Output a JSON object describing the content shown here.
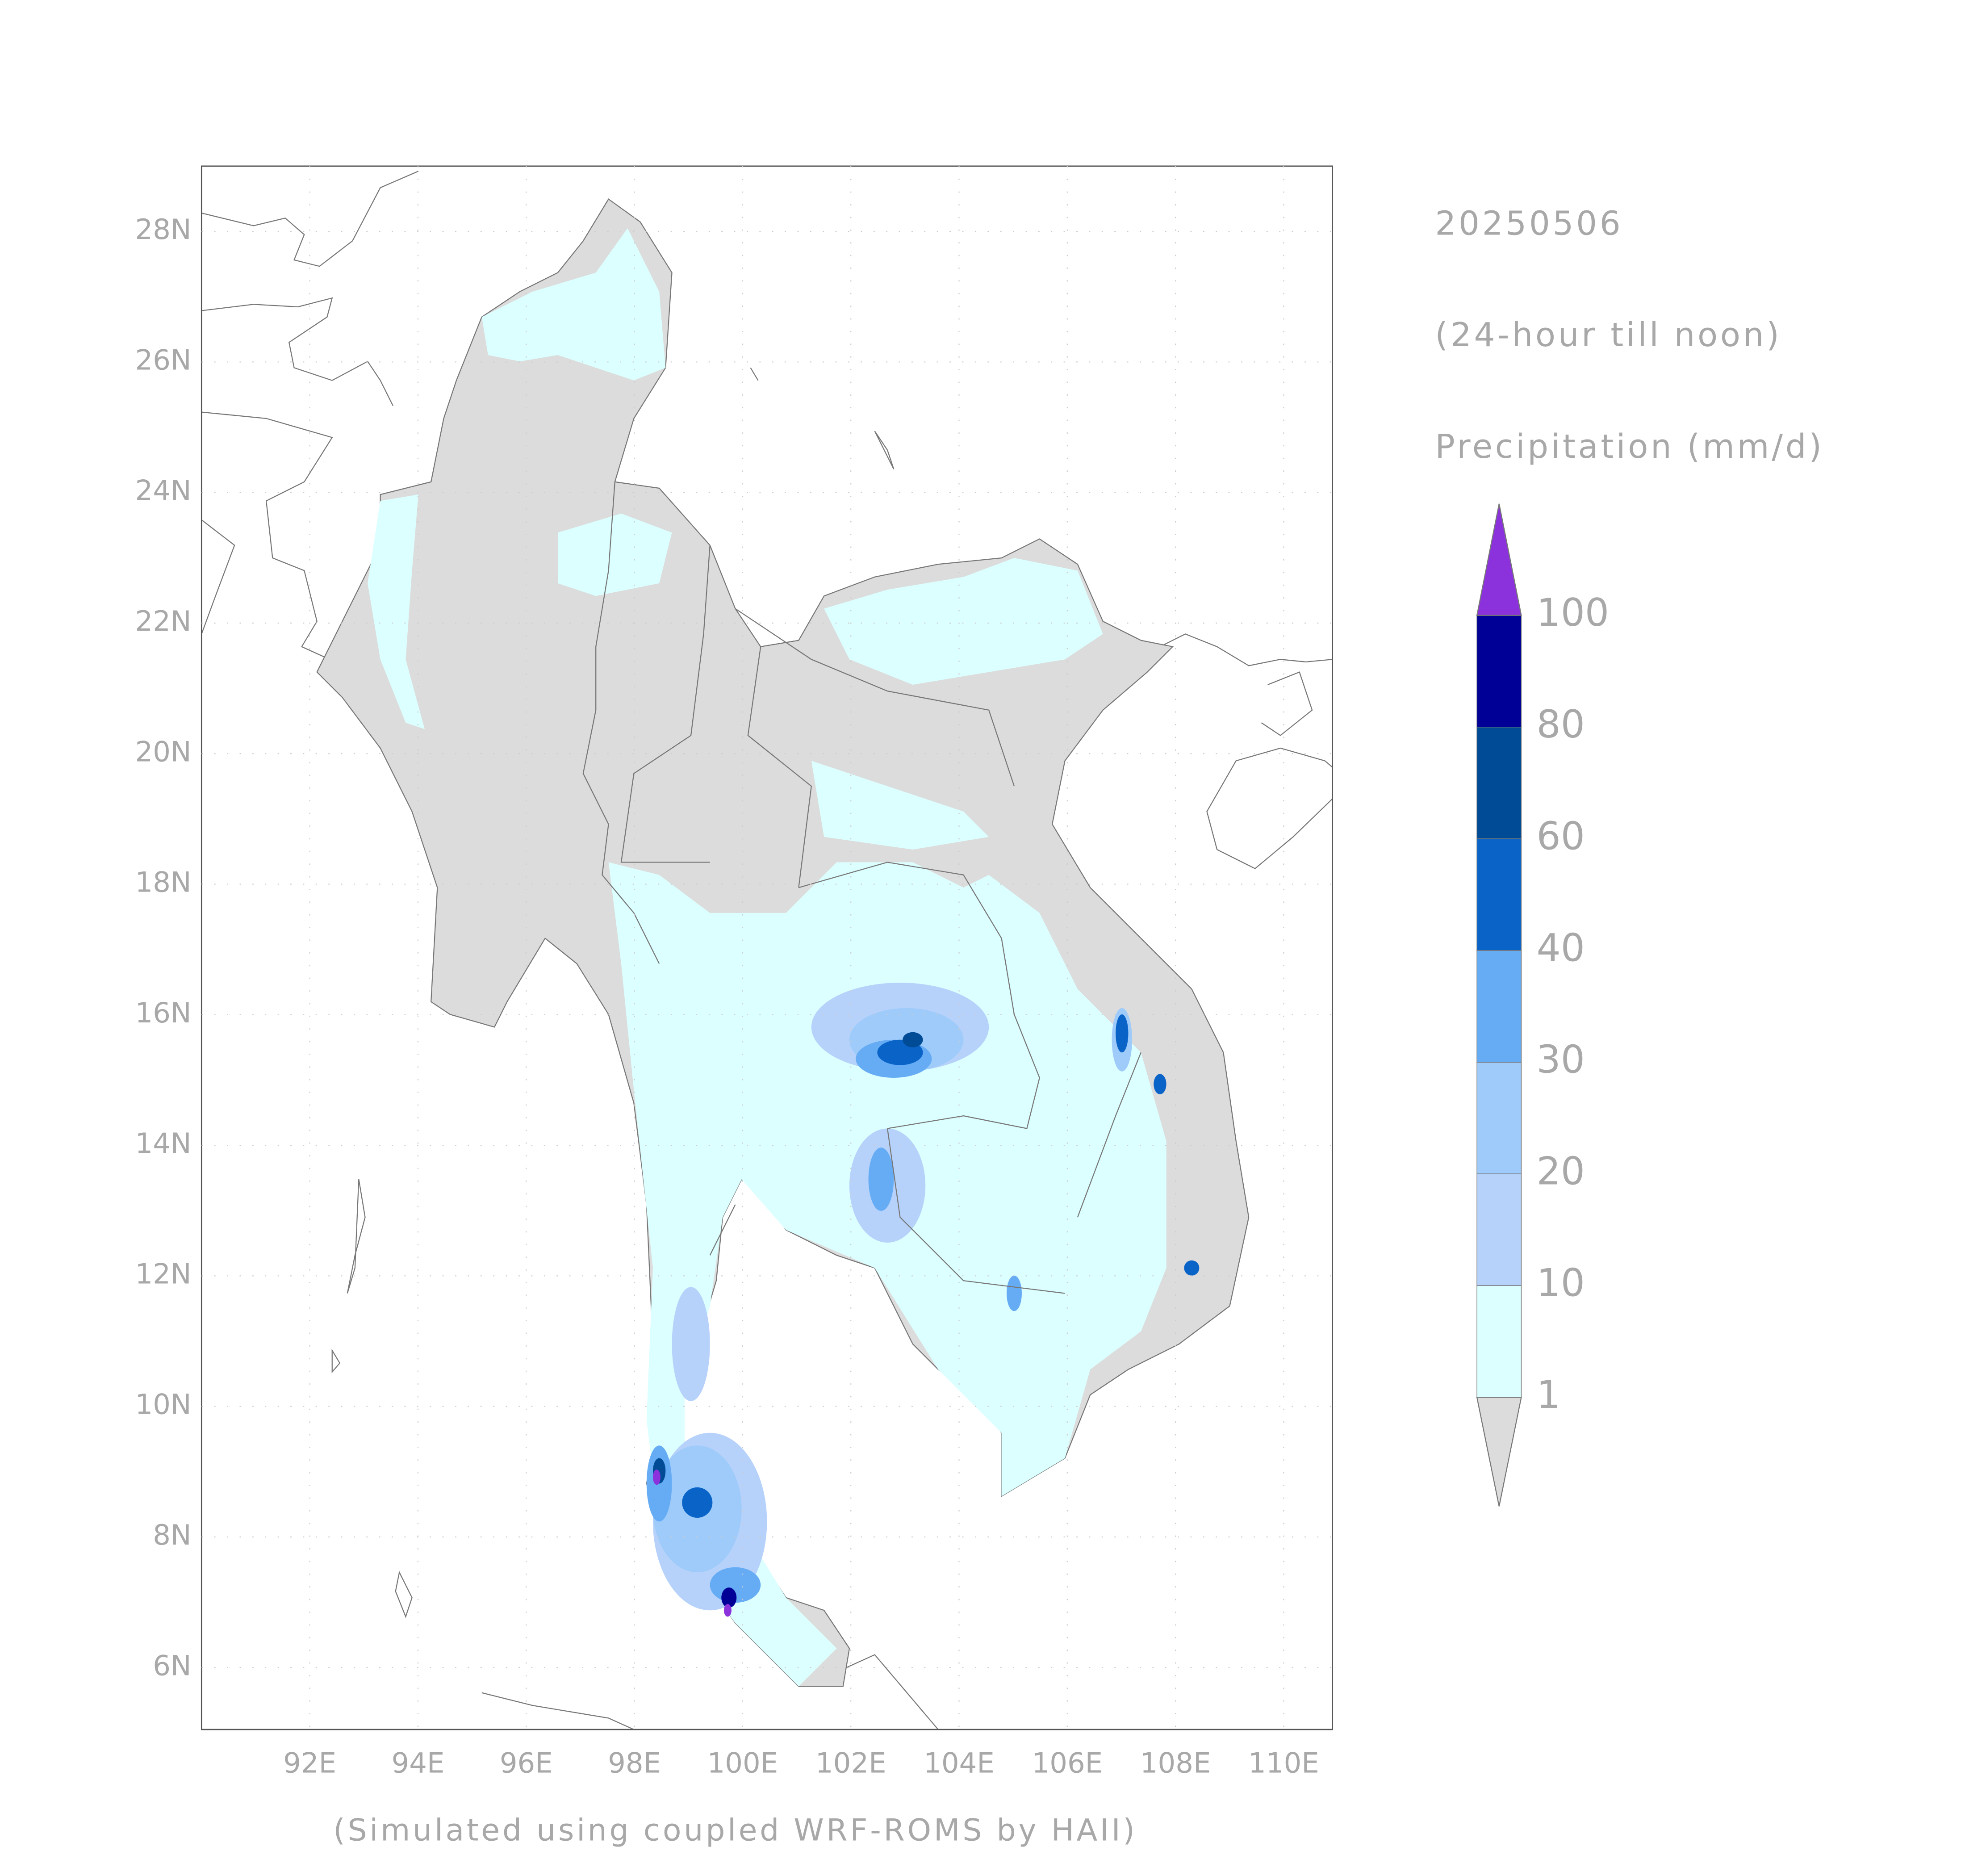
{
  "map": {
    "date": "20250506",
    "period": "(24-hour till noon)",
    "variable": "Precipitation (mm/d)",
    "credit": "(Simulated using coupled WRF-ROMS by HAII)",
    "xlim": [
      90,
      110.9
    ],
    "ylim": [
      5.05,
      29
    ],
    "xticks": [
      {
        "value": 92,
        "label": "92E"
      },
      {
        "value": 94,
        "label": "94E"
      },
      {
        "value": 96,
        "label": "96E"
      },
      {
        "value": 98,
        "label": "98E"
      },
      {
        "value": 100,
        "label": "100E"
      },
      {
        "value": 102,
        "label": "102E"
      },
      {
        "value": 104,
        "label": "104E"
      },
      {
        "value": 106,
        "label": "106E"
      },
      {
        "value": 108,
        "label": "108E"
      },
      {
        "value": 110,
        "label": "110E"
      }
    ],
    "yticks": [
      {
        "value": 6,
        "label": "6N"
      },
      {
        "value": 8,
        "label": "8N"
      },
      {
        "value": 10,
        "label": "10N"
      },
      {
        "value": 12,
        "label": "12N"
      },
      {
        "value": 14,
        "label": "14N"
      },
      {
        "value": 16,
        "label": "16N"
      },
      {
        "value": 18,
        "label": "18N"
      },
      {
        "value": 20,
        "label": "20N"
      },
      {
        "value": 22,
        "label": "22N"
      },
      {
        "value": 24,
        "label": "24N"
      },
      {
        "value": 26,
        "label": "26N"
      },
      {
        "value": 28,
        "label": "28N"
      }
    ],
    "grid": true,
    "colorbar": {
      "levels": [
        1,
        10,
        20,
        30,
        40,
        60,
        80,
        100
      ],
      "colors": [
        "#dcffff",
        "#b6d2fb",
        "#9ecbfa",
        "#66acf5",
        "#0a64c8",
        "#004b96",
        "#000096"
      ],
      "under_color": "#dcdcdc",
      "over_color": "#8c32dc"
    }
  }
}
